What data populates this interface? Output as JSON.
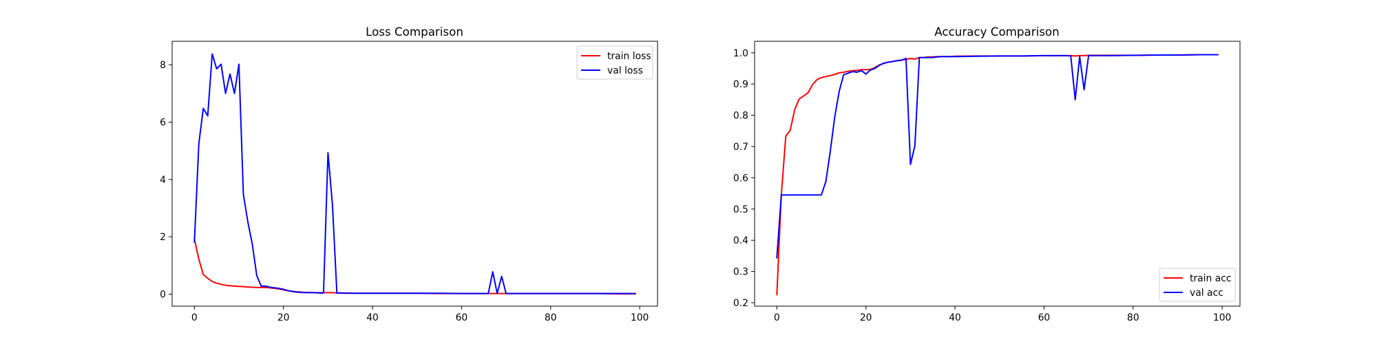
{
  "chart_data": [
    {
      "type": "line",
      "title": "Loss Comparison",
      "xlabel": "",
      "ylabel": "",
      "xlim": [
        -5,
        104
      ],
      "ylim": [
        -0.42,
        8.82
      ],
      "xticks": [
        0,
        20,
        40,
        60,
        80,
        100
      ],
      "yticks": [
        0,
        2,
        4,
        6,
        8
      ],
      "xtick_labels": [
        "0",
        "20",
        "40",
        "60",
        "80",
        "100"
      ],
      "ytick_labels": [
        "0",
        "2",
        "4",
        "6",
        "8"
      ],
      "grid": false,
      "legend_position": "top-right",
      "series": [
        {
          "name": "train loss",
          "color": "#ff0000",
          "x": [
            0,
            1,
            2,
            3,
            4,
            5,
            6,
            7,
            8,
            9,
            10,
            11,
            12,
            13,
            14,
            15,
            16,
            17,
            18,
            19,
            20,
            21,
            22,
            23,
            24,
            25,
            26,
            27,
            28,
            29,
            30,
            31,
            32,
            33,
            34,
            35,
            36,
            37,
            38,
            39,
            40,
            45,
            50,
            55,
            60,
            65,
            66,
            67,
            68,
            69,
            70,
            75,
            80,
            85,
            90,
            95,
            99
          ],
          "y": [
            1.92,
            1.22,
            0.68,
            0.55,
            0.44,
            0.38,
            0.34,
            0.31,
            0.29,
            0.28,
            0.27,
            0.26,
            0.25,
            0.24,
            0.23,
            0.23,
            0.23,
            0.22,
            0.2,
            0.18,
            0.15,
            0.12,
            0.1,
            0.08,
            0.07,
            0.06,
            0.06,
            0.05,
            0.05,
            0.05,
            0.05,
            0.05,
            0.04,
            0.04,
            0.04,
            0.04,
            0.03,
            0.03,
            0.03,
            0.03,
            0.03,
            0.03,
            0.03,
            0.02,
            0.02,
            0.02,
            0.02,
            0.02,
            0.02,
            0.02,
            0.02,
            0.02,
            0.02,
            0.02,
            0.02,
            0.01,
            0.01
          ]
        },
        {
          "name": "val loss",
          "color": "#0000ff",
          "x": [
            0,
            1,
            2,
            3,
            4,
            5,
            6,
            7,
            8,
            9,
            10,
            11,
            12,
            13,
            14,
            15,
            16,
            17,
            18,
            19,
            20,
            21,
            22,
            23,
            24,
            25,
            26,
            27,
            28,
            29,
            30,
            31,
            32,
            33,
            34,
            35,
            36,
            37,
            38,
            39,
            40,
            45,
            50,
            55,
            60,
            65,
            66,
            67,
            68,
            69,
            70,
            75,
            80,
            85,
            90,
            95,
            99
          ],
          "y": [
            1.82,
            5.25,
            6.48,
            6.22,
            8.38,
            7.86,
            8.02,
            7.0,
            7.68,
            7.0,
            8.02,
            3.48,
            2.52,
            1.75,
            0.65,
            0.28,
            0.28,
            0.24,
            0.22,
            0.2,
            0.17,
            0.12,
            0.09,
            0.07,
            0.06,
            0.05,
            0.05,
            0.05,
            0.04,
            0.04,
            4.93,
            3.12,
            0.04,
            0.04,
            0.03,
            0.03,
            0.03,
            0.03,
            0.03,
            0.03,
            0.03,
            0.03,
            0.03,
            0.03,
            0.02,
            0.02,
            0.02,
            0.78,
            0.02,
            0.62,
            0.02,
            0.02,
            0.02,
            0.02,
            0.02,
            0.02,
            0.02
          ]
        }
      ]
    },
    {
      "type": "line",
      "title": "Accuracy Comparison",
      "xlabel": "",
      "ylabel": "",
      "xlim": [
        -5,
        104
      ],
      "ylim": [
        0.189,
        1.037
      ],
      "xticks": [
        0,
        20,
        40,
        60,
        80,
        100
      ],
      "yticks": [
        0.2,
        0.3,
        0.4,
        0.5,
        0.6,
        0.7,
        0.8,
        0.9,
        1.0
      ],
      "xtick_labels": [
        "0",
        "20",
        "40",
        "60",
        "80",
        "100"
      ],
      "ytick_labels": [
        "0.2",
        "0.3",
        "0.4",
        "0.5",
        "0.6",
        "0.7",
        "0.8",
        "0.9",
        "1.0"
      ],
      "grid": false,
      "legend_position": "lower-right",
      "series": [
        {
          "name": "train acc",
          "color": "#ff0000",
          "x": [
            0,
            1,
            2,
            3,
            4,
            5,
            6,
            7,
            8,
            9,
            10,
            11,
            12,
            13,
            14,
            15,
            16,
            17,
            18,
            19,
            20,
            21,
            22,
            23,
            24,
            25,
            26,
            27,
            28,
            29,
            30,
            31,
            32,
            33,
            34,
            35,
            36,
            37,
            38,
            39,
            40,
            45,
            50,
            55,
            60,
            65,
            66,
            67,
            68,
            69,
            70,
            75,
            80,
            85,
            90,
            95,
            99
          ],
          "y": [
            0.226,
            0.545,
            0.733,
            0.752,
            0.818,
            0.852,
            0.862,
            0.872,
            0.898,
            0.914,
            0.921,
            0.924,
            0.927,
            0.931,
            0.936,
            0.938,
            0.941,
            0.943,
            0.944,
            0.946,
            0.946,
            0.947,
            0.953,
            0.961,
            0.966,
            0.97,
            0.972,
            0.975,
            0.977,
            0.979,
            0.982,
            0.98,
            0.985,
            0.985,
            0.987,
            0.987,
            0.988,
            0.988,
            0.988,
            0.988,
            0.989,
            0.99,
            0.99,
            0.99,
            0.991,
            0.991,
            0.991,
            0.99,
            0.991,
            0.991,
            0.992,
            0.992,
            0.992,
            0.993,
            0.993,
            0.994,
            0.994
          ]
        },
        {
          "name": "val acc",
          "color": "#0000ff",
          "x": [
            0,
            1,
            2,
            3,
            4,
            5,
            6,
            7,
            8,
            9,
            10,
            11,
            12,
            13,
            14,
            15,
            16,
            17,
            18,
            19,
            20,
            21,
            22,
            23,
            24,
            25,
            26,
            27,
            28,
            29,
            30,
            31,
            32,
            33,
            34,
            35,
            36,
            37,
            38,
            39,
            40,
            45,
            50,
            55,
            60,
            65,
            66,
            67,
            68,
            69,
            70,
            75,
            80,
            85,
            90,
            95,
            99
          ],
          "y": [
            0.344,
            0.545,
            0.545,
            0.545,
            0.545,
            0.545,
            0.545,
            0.545,
            0.545,
            0.545,
            0.545,
            0.588,
            0.685,
            0.795,
            0.877,
            0.93,
            0.935,
            0.94,
            0.938,
            0.943,
            0.932,
            0.945,
            0.95,
            0.96,
            0.967,
            0.97,
            0.972,
            0.975,
            0.976,
            0.982,
            0.643,
            0.703,
            0.985,
            0.985,
            0.985,
            0.985,
            0.987,
            0.988,
            0.988,
            0.988,
            0.988,
            0.989,
            0.99,
            0.99,
            0.991,
            0.991,
            0.99,
            0.85,
            0.988,
            0.882,
            0.991,
            0.991,
            0.992,
            0.993,
            0.993,
            0.994,
            0.994
          ]
        }
      ]
    }
  ]
}
